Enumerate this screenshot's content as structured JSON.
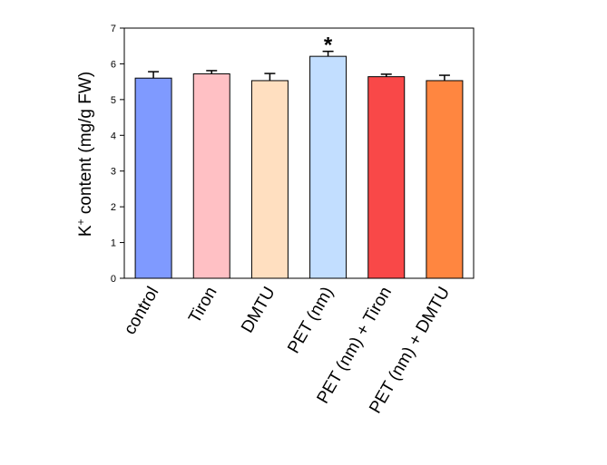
{
  "chart_data": {
    "type": "bar",
    "categories": [
      "control",
      "Tiron",
      "DMTU",
      "PET (nm)",
      "PET (nm) + Tiron",
      "PET (nm) + DMTU"
    ],
    "values": [
      5.6,
      5.72,
      5.53,
      6.21,
      5.64,
      5.53
    ],
    "errors": [
      0.18,
      0.09,
      0.2,
      0.14,
      0.07,
      0.15
    ],
    "colors": [
      "#7f9aff",
      "#ffc0c4",
      "#ffdfc0",
      "#c2deff",
      "#f94848",
      "#ff8640"
    ],
    "ylabel_main": "K",
    "ylabel_sup": "+",
    "ylabel_rest": " content (mg/g FW)",
    "ylim": [
      0,
      7
    ],
    "yticks": [
      "0",
      "1",
      "2",
      "3",
      "4",
      "5",
      "6",
      "7"
    ],
    "annotations": [
      {
        "category": "PET (nm)",
        "text": "*"
      }
    ],
    "grid": false,
    "legend": "none"
  }
}
